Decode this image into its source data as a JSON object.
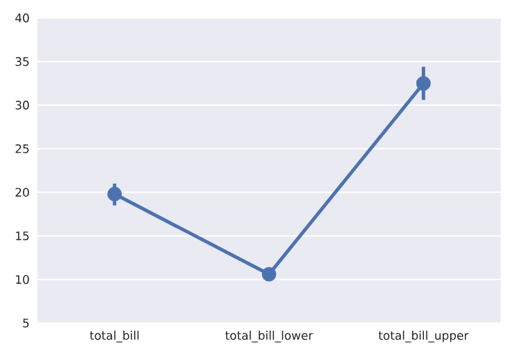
{
  "chart_data": {
    "type": "line",
    "categories": [
      "total_bill",
      "total_bill_lower",
      "total_bill_upper"
    ],
    "series": [
      {
        "color": "#4c72b0",
        "values": [
          19.8,
          10.6,
          32.5
        ],
        "errors": [
          [
            18.5,
            21.0
          ],
          [
            10.3,
            11.0
          ],
          [
            30.6,
            34.4
          ]
        ]
      }
    ],
    "ylim": [
      5,
      40
    ],
    "yticks": [
      5,
      10,
      15,
      20,
      25,
      30,
      35,
      40
    ],
    "grid": "y",
    "marker": "circle",
    "line_style": "solid"
  }
}
